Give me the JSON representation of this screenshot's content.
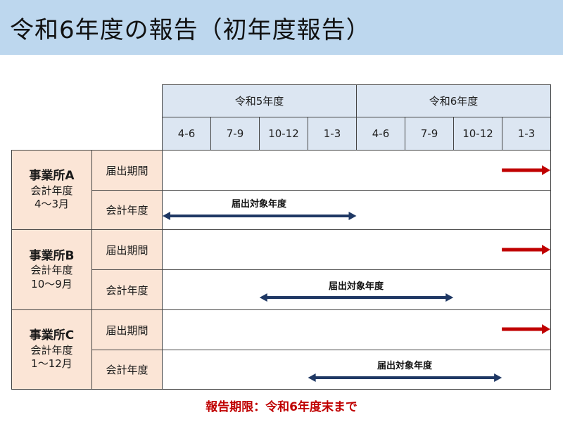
{
  "title": "令和6年度の報告（初年度報告）",
  "years": [
    "令和5年度",
    "令和6年度"
  ],
  "quarters": [
    "4-6",
    "7-9",
    "10-12",
    "1-3",
    "4-6",
    "7-9",
    "10-12",
    "1-3"
  ],
  "offices": [
    {
      "name": "事業所A",
      "fiscal_label": "会計年度",
      "fiscal_period": "4～3月",
      "row_labels": [
        "届出期間",
        "会計年度"
      ],
      "target_label": "届出対象年度",
      "target_start_quarter": 0,
      "target_end_quarter": 4
    },
    {
      "name": "事業所B",
      "fiscal_label": "会計年度",
      "fiscal_period": "10～9月",
      "row_labels": [
        "届出期間",
        "会計年度"
      ],
      "target_label": "届出対象年度",
      "target_start_quarter": 2,
      "target_end_quarter": 6
    },
    {
      "name": "事業所C",
      "fiscal_label": "会計年度",
      "fiscal_period": "1～12月",
      "row_labels": [
        "届出期間",
        "会計年度"
      ],
      "target_label": "届出対象年度",
      "target_start_quarter": 3,
      "target_end_quarter": 7
    }
  ],
  "deadline": "報告期限：令和6年度末まで",
  "colors": {
    "target_arrow": "#1f3864",
    "submission_arrow": "#c00000"
  }
}
